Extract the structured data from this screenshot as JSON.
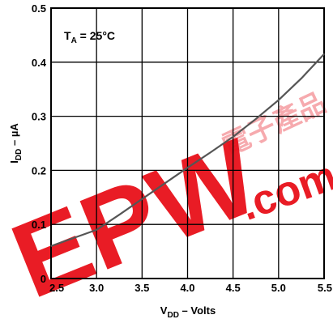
{
  "chart_data": {
    "type": "line",
    "title": "",
    "annotation": {
      "label": "T",
      "sub": "A",
      "rest": " = 25°C"
    },
    "xlabel": {
      "main": "V",
      "sub": "DD",
      "rest": " – Volts"
    },
    "ylabel": {
      "main": "I",
      "sub": "DD",
      "rest": " – µA"
    },
    "xlim": [
      2.5,
      5.5
    ],
    "ylim": [
      0,
      0.5
    ],
    "x_ticks": [
      "2.5",
      "3.0",
      "3.5",
      "4.0",
      "4.5",
      "5.0",
      "5.5"
    ],
    "y_ticks": [
      "0",
      "0.1",
      "0.2",
      "0.3",
      "0.4",
      "0.5"
    ],
    "grid": true,
    "series": [
      {
        "x": [
          2.5,
          2.75,
          3.0,
          3.25,
          3.5,
          3.75,
          4.0,
          4.25,
          4.5,
          4.75,
          5.0,
          5.25,
          5.5
        ],
        "y": [
          0.06,
          0.075,
          0.09,
          0.118,
          0.147,
          0.176,
          0.205,
          0.233,
          0.262,
          0.295,
          0.33,
          0.37,
          0.415
        ]
      }
    ],
    "line_color": "#555555"
  },
  "watermark": {
    "text": "EPW",
    "text2": ".com",
    "cjk": "電子產品",
    "color": "#e8101a"
  }
}
